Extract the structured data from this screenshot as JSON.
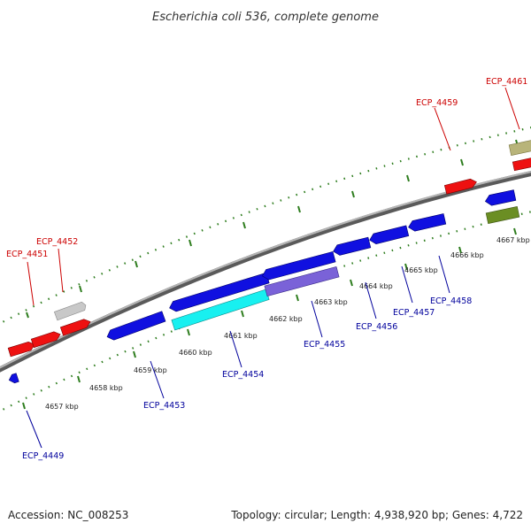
{
  "title": "Escherichia coli 536, complete genome",
  "footer": {
    "accession": "Accession: NC_008253",
    "summary": "Topology: circular; Length: 4,938,920 bp; Genes: 4,722"
  },
  "colors": {
    "backbone": "#8a8a8a",
    "tick": "#2e7d1e",
    "forward_label": "#cc0000",
    "reverse_label": "#00009c"
  },
  "tick_labels": [
    "4657 kbp",
    "4658 kbp",
    "4659 kbp",
    "4660 kbp",
    "4661 kbp",
    "4662 kbp",
    "4663 kbp",
    "4664 kbp",
    "4665 kbp",
    "4666 kbp",
    "4667 kbp"
  ],
  "genes": [
    {
      "label": "ECP_4451",
      "strand": "forward",
      "color": "#ee1111"
    },
    {
      "label": "ECP_4452",
      "strand": "forward",
      "color": "#ee1111"
    },
    {
      "label": "",
      "strand": "forward",
      "color": "#ee1111"
    },
    {
      "label": "",
      "strand": "forward",
      "color": "#c8c8c8"
    },
    {
      "label": "ECP_4459",
      "strand": "forward",
      "color": "#ee1111"
    },
    {
      "label": "ECP_4461",
      "strand": "forward",
      "color": "#ee1111"
    },
    {
      "label": "",
      "strand": "forward",
      "color": "#b8b47a"
    },
    {
      "label": "ECP_4449",
      "strand": "reverse",
      "color": "#1010e0"
    },
    {
      "label": "ECP_4453",
      "strand": "reverse",
      "color": "#1010e0"
    },
    {
      "label": "ECP_4454",
      "strand": "reverse",
      "color": "#1010e0"
    },
    {
      "label": "",
      "strand": "reverse",
      "color": "#18f0f0"
    },
    {
      "label": "ECP_4455",
      "strand": "reverse",
      "color": "#7a62d8"
    },
    {
      "label": "ECP_4456",
      "strand": "reverse",
      "color": "#1010e0"
    },
    {
      "label": "ECP_4457",
      "strand": "reverse",
      "color": "#1010e0"
    },
    {
      "label": "ECP_4458",
      "strand": "reverse",
      "color": "#1010e0"
    },
    {
      "label": "",
      "strand": "reverse",
      "color": "#1010e0"
    },
    {
      "label": "",
      "strand": "reverse",
      "color": "#6b8e23"
    }
  ]
}
